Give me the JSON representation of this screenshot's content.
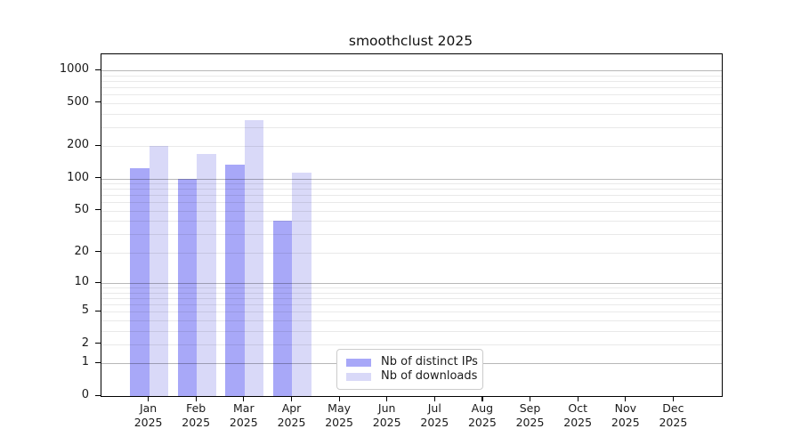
{
  "chart_data": {
    "type": "bar",
    "title": "smoothclust 2025",
    "year_label": "2025",
    "months": [
      "Jan",
      "Feb",
      "Mar",
      "Apr",
      "May",
      "Jun",
      "Jul",
      "Aug",
      "Sep",
      "Oct",
      "Nov",
      "Dec"
    ],
    "categories": [
      "Jan 2025",
      "Feb 2025",
      "Mar 2025",
      "Apr 2025",
      "May 2025",
      "Jun 2025",
      "Jul 2025",
      "Aug 2025",
      "Sep 2025",
      "Oct 2025",
      "Nov 2025",
      "Dec 2025"
    ],
    "series": [
      {
        "name": "Nb of distinct IPs",
        "color": "#a8a8f8",
        "values": [
          125,
          100,
          135,
          40,
          0,
          0,
          0,
          0,
          0,
          0,
          0,
          0
        ]
      },
      {
        "name": "Nb of downloads",
        "color": "#d9d9f8",
        "values": [
          200,
          168,
          350,
          113,
          0,
          0,
          0,
          0,
          0,
          0,
          0,
          0
        ]
      }
    ],
    "y_ticks": [
      0,
      1,
      2,
      5,
      10,
      20,
      50,
      100,
      200,
      500,
      1000
    ],
    "y_scale": "log1p",
    "ylim": [
      0,
      1400
    ],
    "grid": "horizontal, major at powers of 10, faint minor log lines, drawn over bars",
    "legend": {
      "position": "inside-bottom-center",
      "items": [
        "Nb of distinct IPs",
        "Nb of downloads"
      ]
    },
    "colors": {
      "major_grid": "#b8b8b8",
      "minor_grid": "#e9e9e9",
      "axis": "#000000",
      "text": "#1a1a1a",
      "background": "#ffffff"
    }
  }
}
